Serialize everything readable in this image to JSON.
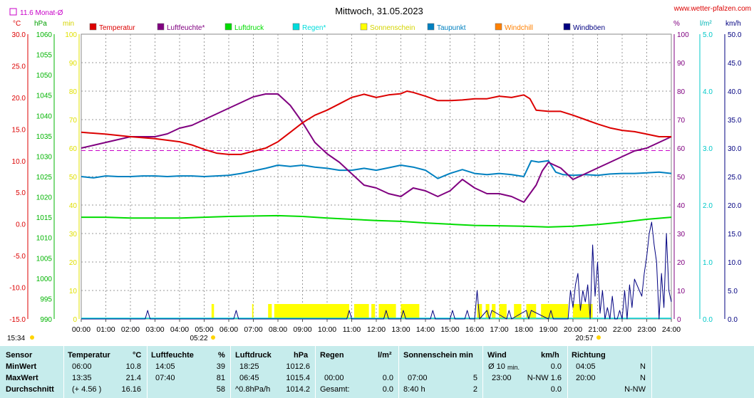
{
  "title": "Mittwoch, 31.05.2023",
  "site": "www.wetter-pfalzen.com",
  "monat_label": "11.6 Monat-Ø",
  "unit_labels": {
    "celsius": "°C",
    "hpa": "hPa",
    "min": "min",
    "percent": "%",
    "lm2": "l/m²",
    "kmh": "km/h"
  },
  "sunrise_label": "05:22",
  "sunset_label": "20:57",
  "stamp_label": "15:34",
  "legend": [
    {
      "name": "Temperatur",
      "color": "#dc0000"
    },
    {
      "name": "Luftfeuchte*",
      "color": "#800080"
    },
    {
      "name": "Luftdruck",
      "color": "#00dc00"
    },
    {
      "name": "Regen*",
      "color": "#00dcdc"
    },
    {
      "name": "Sonnenschein",
      "color": "#ffff00"
    },
    {
      "name": "Taupunkt",
      "color": "#0080c0"
    },
    {
      "name": "Windchill",
      "color": "#ff8000"
    },
    {
      "name": "Windböen",
      "color": "#000080"
    }
  ],
  "chart_data": {
    "type": "line",
    "title": "Mittwoch, 31.05.2023",
    "x_ticks": [
      "00:00",
      "01:00",
      "02:00",
      "03:00",
      "04:00",
      "05:00",
      "06:00",
      "07:00",
      "08:00",
      "09:00",
      "10:00",
      "11:00",
      "12:00",
      "13:00",
      "14:00",
      "15:00",
      "16:00",
      "17:00",
      "18:00",
      "19:00",
      "20:00",
      "21:00",
      "22:00",
      "23:00",
      "24:00"
    ],
    "axes": {
      "temperature_c": {
        "range": [
          -15,
          30
        ],
        "ticks": [
          "30.0",
          "25.0",
          "20.0",
          "15.0",
          "10.0",
          "5.0",
          "0.0",
          "-5.0",
          "-10.0",
          "-15.0"
        ],
        "color": "#dc0000"
      },
      "pressure_hpa": {
        "range": [
          990,
          1060
        ],
        "ticks": [
          "1060",
          "1055",
          "1050",
          "1045",
          "1040",
          "1035",
          "1030",
          "1025",
          "1020",
          "1015",
          "1010",
          "1005",
          "1000",
          "995",
          "990"
        ],
        "color": "#00b400"
      },
      "sunshine_min": {
        "range": [
          0,
          100
        ],
        "ticks": [
          "100",
          "90",
          "80",
          "70",
          "60",
          "50",
          "40",
          "30",
          "20",
          "10",
          "0"
        ],
        "color": "#e6e600"
      },
      "humidity_pct": {
        "range": [
          0,
          100
        ],
        "ticks": [
          "100",
          "90",
          "80",
          "70",
          "60",
          "50",
          "40",
          "30",
          "20",
          "10",
          "0"
        ],
        "color": "#800080"
      },
      "rain_lm2": {
        "range": [
          0,
          5
        ],
        "ticks": [
          "5.0",
          "4.0",
          "3.0",
          "2.0",
          "1.0",
          "0.0"
        ],
        "color": "#00c8c8"
      },
      "wind_kmh": {
        "range": [
          0,
          50
        ],
        "ticks": [
          "50.0",
          "45.0",
          "40.0",
          "35.0",
          "30.0",
          "25.0",
          "20.0",
          "15.0",
          "10.0",
          "5.0",
          "0.0"
        ],
        "color": "#000080"
      }
    },
    "monthly_mean_temp": 11.6,
    "series": [
      {
        "name": "Temperatur",
        "axis": "temperature_c",
        "color": "#dc0000",
        "x": [
          0,
          1,
          2,
          3,
          4,
          4.5,
          5,
          5.5,
          6,
          6.5,
          7,
          7.5,
          8,
          8.5,
          9,
          9.5,
          10,
          10.5,
          11,
          11.5,
          12,
          12.5,
          13,
          13.25,
          13.5,
          14,
          14.5,
          15,
          15.5,
          16,
          16.5,
          17,
          17.5,
          18,
          18.25,
          18.5,
          19,
          19.5,
          20,
          20.5,
          21,
          21.5,
          22,
          22.5,
          23,
          23.5,
          24
        ],
        "y": [
          14.5,
          14.2,
          13.8,
          13.5,
          13.0,
          12.5,
          11.8,
          11.2,
          11.0,
          11.0,
          11.5,
          12.0,
          13.0,
          14.5,
          16.0,
          17.2,
          18.0,
          19.0,
          20.0,
          20.5,
          20.0,
          20.4,
          20.6,
          21.0,
          20.8,
          20.2,
          19.5,
          19.5,
          19.6,
          19.8,
          19.8,
          20.2,
          20.0,
          20.4,
          19.8,
          18.0,
          17.8,
          17.8,
          17.2,
          16.5,
          15.8,
          15.2,
          14.8,
          14.6,
          14.2,
          13.8,
          13.8
        ]
      },
      {
        "name": "Luftfeuchte*",
        "axis": "humidity_pct",
        "color": "#800080",
        "x": [
          0,
          0.5,
          1,
          1.5,
          2,
          2.5,
          3,
          3.5,
          4,
          4.5,
          5,
          5.5,
          6,
          6.5,
          7,
          7.5,
          7.67,
          8,
          8.5,
          9,
          9.5,
          10,
          10.5,
          11,
          11.5,
          12,
          12.5,
          13,
          13.5,
          14,
          14.5,
          15,
          15.5,
          16,
          16.5,
          17,
          17.5,
          18,
          18.5,
          18.75,
          19,
          19.5,
          20,
          20.5,
          21,
          21.5,
          22,
          22.5,
          23,
          23.5,
          24
        ],
        "y": [
          60,
          61,
          62,
          63,
          64,
          64,
          64,
          65,
          67,
          68,
          70,
          72,
          74,
          76,
          78,
          79,
          79,
          79,
          75,
          69,
          62,
          58,
          55,
          51,
          47,
          46,
          44,
          43,
          46,
          45,
          43,
          45,
          49,
          46,
          44,
          44,
          43,
          41,
          47,
          52,
          55,
          53,
          49,
          51,
          53,
          55,
          57,
          59,
          60,
          62,
          64
        ]
      },
      {
        "name": "Luftdruck",
        "axis": "pressure_hpa",
        "color": "#00dc00",
        "x": [
          0,
          1,
          2,
          3,
          4,
          5,
          6,
          7,
          8,
          9,
          10,
          11,
          12,
          13,
          14,
          15,
          16,
          17,
          18,
          19,
          20,
          21,
          22,
          23,
          24
        ],
        "y": [
          1015.0,
          1015.0,
          1014.8,
          1014.8,
          1014.8,
          1015.0,
          1015.2,
          1015.3,
          1015.4,
          1015.2,
          1014.8,
          1014.5,
          1014.2,
          1014.0,
          1013.6,
          1013.3,
          1013.0,
          1012.9,
          1012.8,
          1012.6,
          1012.8,
          1013.2,
          1013.8,
          1014.5,
          1015.0
        ]
      },
      {
        "name": "Taupunkt",
        "axis": "temperature_c",
        "color": "#0080c0",
        "x": [
          0,
          0.5,
          1,
          1.5,
          2,
          2.5,
          3,
          3.5,
          4,
          4.5,
          5,
          5.5,
          6,
          6.5,
          7,
          7.5,
          8,
          8.5,
          9,
          9.5,
          10,
          10.5,
          11,
          11.5,
          12,
          12.5,
          13,
          13.5,
          14,
          14.5,
          15,
          15.5,
          16,
          16.5,
          17,
          17.5,
          18,
          18.3,
          18.6,
          19,
          19.3,
          19.6,
          20,
          20.5,
          21,
          21.5,
          22,
          22.5,
          23,
          23.5,
          24
        ],
        "y": [
          7.5,
          7.3,
          7.6,
          7.5,
          7.5,
          7.6,
          7.6,
          7.5,
          7.6,
          7.6,
          7.5,
          7.6,
          7.7,
          8.0,
          8.4,
          8.8,
          9.3,
          9.1,
          9.3,
          9.0,
          8.8,
          8.5,
          8.5,
          8.8,
          8.5,
          8.9,
          9.3,
          9.0,
          8.5,
          7.2,
          8.0,
          8.6,
          8.0,
          7.8,
          8.0,
          7.8,
          7.5,
          10.0,
          9.8,
          10.0,
          8.2,
          7.8,
          7.7,
          7.8,
          7.7,
          7.9,
          8.0,
          8.0,
          8.1,
          8.2,
          8.0
        ]
      },
      {
        "name": "Windböen",
        "axis": "wind_kmh",
        "color": "#000080",
        "x": [
          0,
          2.6,
          2.7,
          2.8,
          6.2,
          6.3,
          6.4,
          10.8,
          10.9,
          11.0,
          12.3,
          12.4,
          12.5,
          13.0,
          13.1,
          13.2,
          14.2,
          14.3,
          14.4,
          15.0,
          15.1,
          15.2,
          15.6,
          15.7,
          15.8,
          16.0,
          16.1,
          16.2,
          16.5,
          16.6,
          16.7,
          17.3,
          17.4,
          17.5,
          18.1,
          18.2,
          18.3,
          19.0,
          19.1,
          19.2,
          19.8,
          19.9,
          20.0,
          20.1,
          20.2,
          20.3,
          20.4,
          20.5,
          20.6,
          20.7,
          20.8,
          20.9,
          21.0,
          21.1,
          21.2,
          21.3,
          21.4,
          21.5,
          21.6,
          21.7,
          21.8,
          21.9,
          22.0,
          22.1,
          22.2,
          22.3,
          22.4,
          22.5,
          22.6,
          22.7,
          22.8,
          22.9,
          23.0,
          23.1,
          23.2,
          23.3,
          23.4,
          23.5,
          23.6,
          23.7,
          23.8,
          23.9,
          24
        ],
        "y": [
          0,
          0,
          1.5,
          0,
          0,
          1.5,
          0,
          0,
          1.5,
          0,
          0,
          1.5,
          0,
          0,
          1.5,
          0,
          0,
          1.5,
          0,
          0,
          1.5,
          0,
          0,
          1.5,
          0,
          0,
          5,
          0,
          1.5,
          0,
          1.5,
          0,
          1.5,
          0,
          1.5,
          0,
          1.5,
          0,
          1.5,
          0,
          0,
          5,
          2,
          6,
          8,
          1.5,
          5,
          3,
          6,
          0,
          13,
          4,
          10,
          1,
          5,
          0,
          2,
          0,
          4,
          0,
          0,
          1.5,
          0,
          5,
          0,
          6,
          2,
          7,
          6,
          5,
          4,
          8,
          11,
          15,
          17,
          13,
          10,
          0,
          8,
          2,
          15,
          5,
          3
        ]
      }
    ],
    "sunshine_intervals": [
      [
        5.3,
        5.4
      ],
      [
        6.95,
        7.0
      ],
      [
        7.6,
        7.75
      ],
      [
        7.85,
        10.9
      ],
      [
        11.1,
        11.7
      ],
      [
        11.8,
        11.95
      ],
      [
        12.1,
        12.8
      ],
      [
        13.0,
        13.75
      ],
      [
        16.1,
        16.3
      ],
      [
        16.45,
        16.6
      ],
      [
        16.7,
        16.85
      ],
      [
        17.0,
        17.3
      ],
      [
        17.6,
        17.9
      ],
      [
        18.1,
        18.5
      ],
      [
        18.7,
        19.8
      ],
      [
        20.0,
        20.8
      ]
    ],
    "rain_series": {
      "name": "Regen*",
      "values": [
        0
      ]
    }
  },
  "stats": {
    "headers": {
      "sensor": "Sensor",
      "temperatur": "Temperatur",
      "temp_unit": "°C",
      "luftfeuchte": "Luftfeuchte",
      "lf_unit": "%",
      "luftdruck": "Luftdruck",
      "ld_unit": "hPa",
      "regen": "Regen",
      "regen_unit": "l/m²",
      "sonne": "Sonnenschein min",
      "wind": "Wind",
      "wind_unit": "km/h",
      "richtung": "Richtung"
    },
    "rows": [
      {
        "label": "MinWert",
        "t_time": "06:00",
        "t_val": "10.8",
        "lf_time": "14:05",
        "lf_val": "39",
        "ld_time": "18:25",
        "ld_val": "1012.6",
        "r_time": "",
        "r_val": "",
        "s_time": "",
        "s_val": "",
        "w_time": "Ø 10",
        "w_sub": "min.",
        "w_val": "0.0",
        "d_time": "04:05",
        "d_val": "N"
      },
      {
        "label": "MaxWert",
        "t_time": "13:35",
        "t_val": "21.4",
        "lf_time": "07:40",
        "lf_val": "81",
        "ld_time": "06:45",
        "ld_val": "1015.4",
        "r_time": "00:00",
        "r_val": "0.0",
        "s_time": "07:00",
        "s_val": "5",
        "w_time": "23:00",
        "w_sub": "N-NW 1.6",
        "w_val": "",
        "d_time": "20:00",
        "d_val": "N"
      },
      {
        "label": "Durchschnitt",
        "t_time": "(+ 4.56 )",
        "t_val": "16.16",
        "lf_time": "",
        "lf_val": "58",
        "ld_time": "^0.8hPa/h",
        "ld_val": "1014.2",
        "r_time": "Gesamt:",
        "r_val": "0.0",
        "s_time": "8:40 h",
        "s_val": "2",
        "w_time": "",
        "w_sub": "",
        "w_val": "0.0",
        "d_time": "",
        "d_val": "N-NW"
      }
    ]
  }
}
